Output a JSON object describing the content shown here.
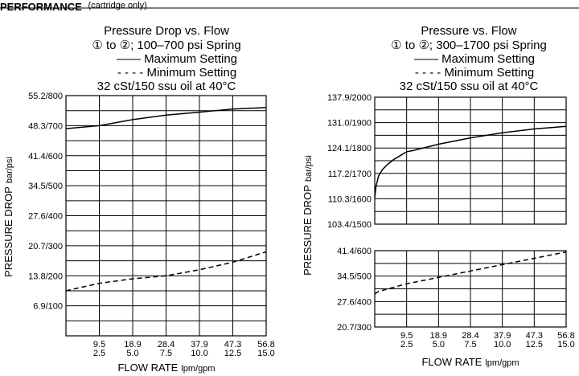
{
  "header": {
    "text": "PERFORMANCE",
    "subtext": "(cartridge only)"
  },
  "chart_data": [
    {
      "type": "line",
      "title": "Pressure Drop vs. Flow",
      "subtitle": "① to ②; 100–700 psi Spring",
      "legend": [
        {
          "style": "solid",
          "text": "—— Maximum Setting"
        },
        {
          "style": "dashed",
          "text": "- - - - Minimum Setting"
        }
      ],
      "condition": "32 cSt/150 ssu oil at 40°C",
      "xlabel_main": "FLOW RATE",
      "xlabel_unit": "lpm/gpm",
      "ylabel_main": "PRESSURE DROP",
      "ylabel_unit": "bar/psi",
      "x_range": [
        0,
        15
      ],
      "x_ticks": [
        {
          "v": 2.5,
          "lpm": "9.5",
          "gpm": "2.5"
        },
        {
          "v": 5.0,
          "lpm": "18.9",
          "gpm": "5.0"
        },
        {
          "v": 7.5,
          "lpm": "28.4",
          "gpm": "7.5"
        },
        {
          "v": 10.0,
          "lpm": "37.9",
          "gpm": "10.0"
        },
        {
          "v": 12.5,
          "lpm": "47.3",
          "gpm": "12.5"
        },
        {
          "v": 15.0,
          "lpm": "56.8",
          "gpm": "15.0"
        }
      ],
      "y_range": [
        0,
        800
      ],
      "y_ticks": [
        {
          "v": 800,
          "label": "55.2/800"
        },
        {
          "v": 700,
          "label": "48.3/700"
        },
        {
          "v": 600,
          "label": "41.4/600"
        },
        {
          "v": 500,
          "label": "34.5/500"
        },
        {
          "v": 400,
          "label": "27.6/400"
        },
        {
          "v": 300,
          "label": "20.7/300"
        },
        {
          "v": 200,
          "label": "13.8/200"
        },
        {
          "v": 100,
          "label": "6.9/100"
        }
      ],
      "grid_y_step": 50,
      "series": [
        {
          "style": "solid",
          "x": [
            0,
            2.5,
            5,
            7.5,
            10,
            12.5,
            15
          ],
          "y": [
            690,
            700,
            720,
            735,
            745,
            755,
            760
          ]
        },
        {
          "style": "dashed",
          "x": [
            0,
            2.5,
            5,
            7.5,
            10,
            12.5,
            15
          ],
          "y": [
            150,
            175,
            190,
            200,
            220,
            245,
            280
          ]
        }
      ]
    },
    {
      "type": "line",
      "title": "Pressure vs. Flow",
      "subtitle": "① to ②; 300–1700 psi Spring",
      "legend": [
        {
          "style": "solid",
          "text": "—— Maximum Setting"
        },
        {
          "style": "dashed",
          "text": "- - - - Minimum Setting"
        }
      ],
      "condition": "32 cSt/150 ssu oil at 40°C",
      "xlabel_main": "FLOW RATE",
      "xlabel_unit": "lpm/gpm",
      "ylabel_main": "PRESSURE DROP",
      "ylabel_unit": "bar/psi",
      "x_range": [
        0,
        15
      ],
      "x_ticks": [
        {
          "v": 2.5,
          "lpm": "9.5",
          "gpm": "2.5"
        },
        {
          "v": 5.0,
          "lpm": "18.9",
          "gpm": "5.0"
        },
        {
          "v": 7.5,
          "lpm": "28.4",
          "gpm": "7.5"
        },
        {
          "v": 10.0,
          "lpm": "37.9",
          "gpm": "10.0"
        },
        {
          "v": 12.5,
          "lpm": "47.3",
          "gpm": "12.5"
        },
        {
          "v": 15.0,
          "lpm": "56.8",
          "gpm": "15.0"
        }
      ],
      "panels": [
        {
          "y_range": [
            1500,
            2000
          ],
          "y_ticks": [
            {
              "v": 2000,
              "label": "137.9/2000"
            },
            {
              "v": 1900,
              "label": "131.0/1900"
            },
            {
              "v": 1800,
              "label": "124.1/1800"
            },
            {
              "v": 1700,
              "label": "117.2/1700"
            },
            {
              "v": 1600,
              "label": "110.3/1600"
            },
            {
              "v": 1500,
              "label": "103.4/1500"
            }
          ],
          "grid_y_step": 50,
          "series": [
            {
              "style": "solid",
              "x": [
                0,
                0.1,
                0.3,
                0.6,
                1,
                1.5,
                2,
                2.5,
                3,
                5,
                7.5,
                10,
                12.5,
                15
              ],
              "y": [
                1605,
                1650,
                1690,
                1715,
                1735,
                1755,
                1770,
                1785,
                1790,
                1815,
                1840,
                1860,
                1875,
                1885
              ]
            }
          ]
        },
        {
          "y_range": [
            300,
            600
          ],
          "y_ticks": [
            {
              "v": 600,
              "label": "41.4/600"
            },
            {
              "v": 500,
              "label": "34.5/500"
            },
            {
              "v": 400,
              "label": "27.6/400"
            },
            {
              "v": 300,
              "label": "20.7/300"
            }
          ],
          "grid_y_step": 50,
          "series": [
            {
              "style": "dashed",
              "x": [
                0,
                0.3,
                2.5,
                5,
                7.5,
                10,
                12.5,
                15
              ],
              "y": [
                430,
                440,
                470,
                495,
                520,
                545,
                570,
                595
              ]
            }
          ]
        }
      ]
    }
  ]
}
